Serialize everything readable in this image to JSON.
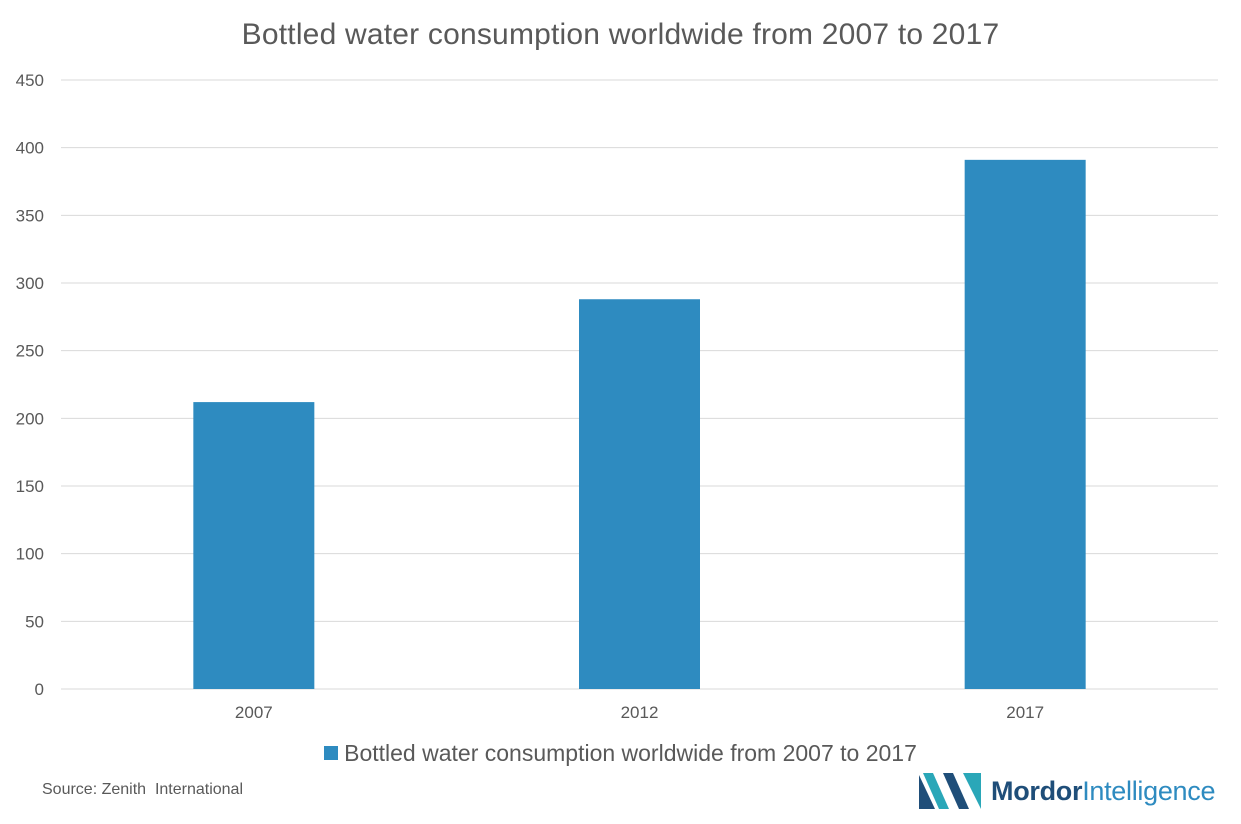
{
  "chart_data": {
    "type": "bar",
    "title": "Bottled water consumption worldwide from 2007 to 2017",
    "categories": [
      "2007",
      "2012",
      "2017"
    ],
    "series": [
      {
        "name": "Bottled water consumption worldwide from 2007 to 2017",
        "values": [
          212,
          288,
          391
        ],
        "color": "#2e8bc0"
      }
    ],
    "ylim": [
      0,
      450
    ],
    "yticks": [
      0,
      50,
      100,
      150,
      200,
      250,
      300,
      350,
      400,
      450
    ],
    "xlabel": "",
    "ylabel": "",
    "grid": true,
    "legend": "bottom-center"
  },
  "source": "Source: Zenith  International",
  "logo": {
    "word1": "Mordor",
    "word2": "Intelligence"
  },
  "colors": {
    "bar": "#2e8bc0",
    "grid": "#d9d9d9",
    "text": "#595959",
    "logo_dark": "#1f4e79",
    "logo_teal": "#2aa7b8"
  }
}
